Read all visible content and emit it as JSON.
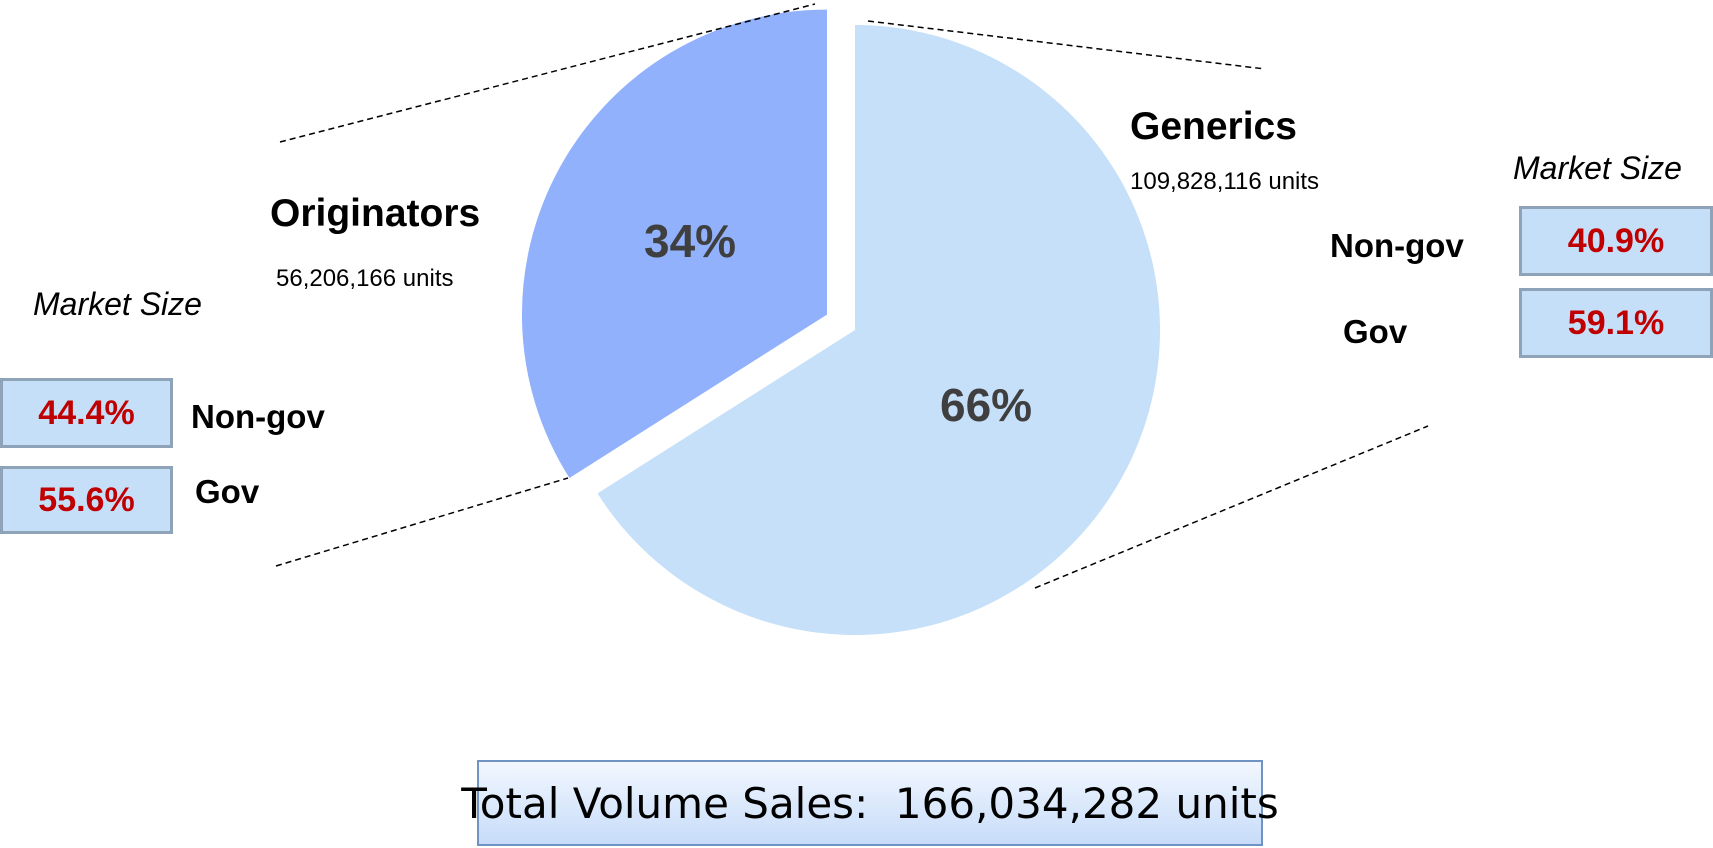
{
  "chart_data": {
    "type": "pie",
    "slices": [
      {
        "label": "Originators",
        "percent": 34,
        "percent_label": "34%",
        "units_text": "56,206,166 units",
        "color": "#91b1fd",
        "exploded": true
      },
      {
        "label": "Generics",
        "percent": 66,
        "percent_label": "66%",
        "units_text": "109,828,116 units",
        "color": "#c6e0f9",
        "exploded": false
      }
    ],
    "total_text": "Total Volume Sales:  166,034,282 units"
  },
  "originators": {
    "title": "Originators",
    "units": "56,206,166 units",
    "market_size_label": "Market Size",
    "rows": [
      {
        "label": "Non-gov",
        "share": "44.4%"
      },
      {
        "label": "Gov",
        "share": "55.6%"
      }
    ]
  },
  "generics": {
    "title": "Generics",
    "units": "109,828,116 units",
    "market_size_label": "Market Size",
    "rows": [
      {
        "label": "Non-gov",
        "share": "40.9%"
      },
      {
        "label": "Gov",
        "share": "59.1%"
      }
    ]
  },
  "colors": {
    "originators_slice": "#91b1fd",
    "generics_slice": "#c6e0f9",
    "share_text": "#c00000",
    "box_fill": "#c6dff8",
    "box_border": "#8fa3b8"
  }
}
